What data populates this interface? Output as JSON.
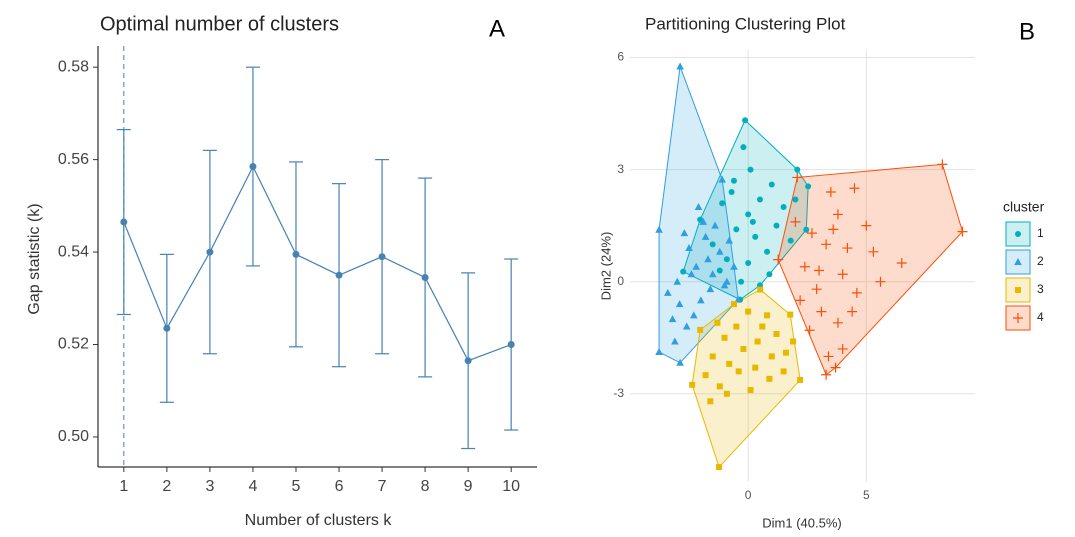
{
  "chart_data": [
    {
      "type": "errorline",
      "panel_label": "A",
      "title": "Optimal number of clusters",
      "x_label": "Number of clusters k",
      "y_label": "Gap statistic (k)",
      "x": [
        1,
        2,
        3,
        4,
        5,
        6,
        7,
        8,
        9,
        10
      ],
      "series": [
        {
          "name": "Gap statistic (k)",
          "color": "#4682b4",
          "values": [
            0.5465,
            0.5235,
            0.54,
            0.5585,
            0.5395,
            0.535,
            0.539,
            0.5345,
            0.5165,
            0.52
          ],
          "errors": [
            0.02,
            0.016,
            0.022,
            0.0215,
            0.02,
            0.0198,
            0.021,
            0.0215,
            0.019,
            0.0185
          ]
        }
      ],
      "optimal_k": 1,
      "xlim": [
        0.4,
        10.6
      ],
      "xticks": [
        1,
        2,
        3,
        4,
        5,
        6,
        7,
        8,
        9,
        10
      ],
      "ylim": [
        0.4935,
        0.5835
      ],
      "yticks": [
        {
          "value": 0.5,
          "label": "0.50"
        },
        0.52,
        0.54,
        0.56,
        0.58
      ],
      "grid": false
    },
    {
      "type": "scatter",
      "panel_label": "B",
      "title": "Partitioning Clustering Plot",
      "x_label": "Dim1 (40.5%)",
      "y_label": "Dim2 (24%)",
      "legend_title": "cluster",
      "series": [
        {
          "name": "1",
          "color": "#00AFBB",
          "shape": "circle",
          "x": [
            -0.13,
            2.08,
            2.54,
            2.46,
            -0.34,
            -2.75,
            -2.03,
            -0.2,
            0.1,
            -0.6,
            1.0,
            0.5,
            -1.1,
            0.0,
            1.5,
            -0.5,
            0.3,
            1.2,
            -1.5,
            -0.9,
            0.0,
            0.8,
            1.8,
            -0.3,
            0.5,
            -1.2,
            2.0,
            0.9,
            -0.7,
            0.2
          ],
          "y": [
            4.32,
            3.0,
            2.55,
            1.39,
            -0.48,
            0.27,
            1.66,
            3.6,
            3.0,
            2.7,
            2.6,
            2.2,
            2.1,
            1.8,
            2.0,
            1.4,
            1.2,
            1.5,
            1.0,
            0.6,
            0.5,
            0.8,
            1.1,
            0.0,
            -0.1,
            0.3,
            2.2,
            0.2,
            2.4,
            1.6
          ]
        },
        {
          "name": "2",
          "color": "#2E9FDF",
          "shape": "triangle",
          "x": [
            -2.88,
            -3.77,
            -3.77,
            -2.88,
            -0.42,
            -1.1,
            -2.5,
            -2.2,
            -1.8,
            -1.5,
            -2.9,
            -3.2,
            -2.6,
            -2.0,
            -1.2,
            -0.8,
            -1.6,
            -3.0,
            -2.3,
            -1.9,
            -1.0,
            -0.6,
            -2.7,
            -3.4,
            -1.4,
            -2.1,
            -0.9,
            -1.7,
            -3.1,
            -2.4
          ],
          "y": [
            5.76,
            1.39,
            -1.88,
            -2.17,
            -0.48,
            2.73,
            0.9,
            0.4,
            1.2,
            0.2,
            -0.6,
            -1.0,
            -1.2,
            -0.5,
            0.8,
            1.1,
            -0.2,
            0.0,
            -0.9,
            1.6,
            -0.1,
            0.4,
            1.3,
            -0.3,
            1.5,
            2.0,
            0.0,
            0.6,
            -1.6,
            0.2
          ]
        },
        {
          "name": "3",
          "color": "#E7B800",
          "shape": "square",
          "x": [
            -1.23,
            -2.37,
            -2.03,
            0.51,
            1.78,
            2.2,
            -1.5,
            -1.0,
            -0.5,
            0.0,
            0.8,
            1.2,
            -0.8,
            -0.2,
            0.4,
            1.0,
            1.6,
            -1.8,
            -1.2,
            -0.4,
            0.3,
            0.9,
            1.5,
            -0.9,
            0.1,
            -1.3,
            0.6,
            1.9,
            -0.6,
            -1.6
          ],
          "y": [
            -4.96,
            -2.76,
            -1.29,
            -0.21,
            -0.88,
            -2.63,
            -2.0,
            -1.5,
            -1.2,
            -0.8,
            -0.9,
            -1.4,
            -2.2,
            -1.8,
            -1.6,
            -2.0,
            -1.9,
            -2.5,
            -2.8,
            -2.4,
            -2.3,
            -2.6,
            -2.4,
            -3.0,
            -2.9,
            -1.1,
            -1.2,
            -1.6,
            -0.6,
            -3.2
          ]
        },
        {
          "name": "4",
          "color": "#FC4E07",
          "shape": "plus",
          "x": [
            8.22,
            9.07,
            3.3,
            1.27,
            2.08,
            3.5,
            4.5,
            3.8,
            5.0,
            2.7,
            3.3,
            4.2,
            5.3,
            2.4,
            3.0,
            4.0,
            4.6,
            2.2,
            3.1,
            3.8,
            2.6,
            4.0,
            3.4,
            6.5,
            2.0,
            4.4,
            3.7,
            2.9,
            5.6,
            3.6
          ],
          "y": [
            3.14,
            1.34,
            -2.49,
            0.59,
            2.79,
            2.4,
            2.5,
            1.8,
            1.5,
            1.3,
            1.0,
            0.9,
            0.8,
            0.4,
            0.3,
            0.2,
            -0.3,
            -0.5,
            -0.8,
            -1.1,
            -1.3,
            -1.8,
            -2.0,
            0.5,
            1.6,
            -0.8,
            -2.3,
            -0.2,
            0.0,
            1.4
          ]
        }
      ],
      "xlim": [
        -5,
        9.6
      ],
      "xticks": [
        0,
        5
      ],
      "ylim": [
        -5.36,
        6.2
      ],
      "yticks": [
        -3,
        0,
        3,
        6
      ],
      "grid": true
    }
  ]
}
